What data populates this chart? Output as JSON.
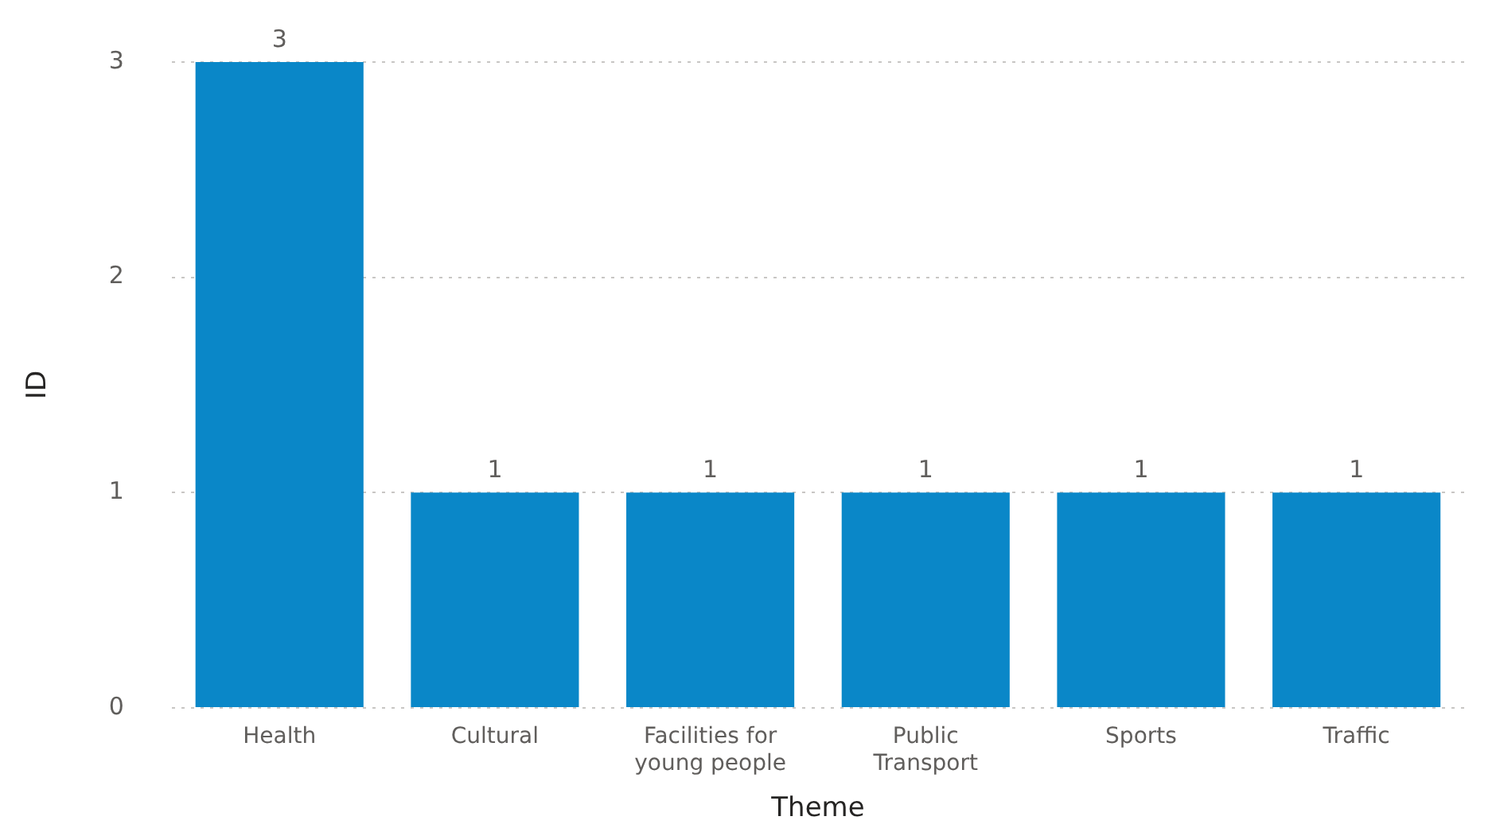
{
  "chart_data": {
    "type": "bar",
    "xlabel": "Theme",
    "ylabel": "ID",
    "categories": [
      "Health",
      "Cultural",
      "Facilities for young people",
      "Public Transport",
      "Sports",
      "Traffic"
    ],
    "values": [
      3,
      1,
      1,
      1,
      1,
      1
    ],
    "color": "#0a87c8",
    "ylim": [
      0,
      3
    ],
    "yticks": [
      0,
      1,
      2,
      3
    ],
    "grid": "y",
    "legend": false,
    "data_labels": true
  }
}
